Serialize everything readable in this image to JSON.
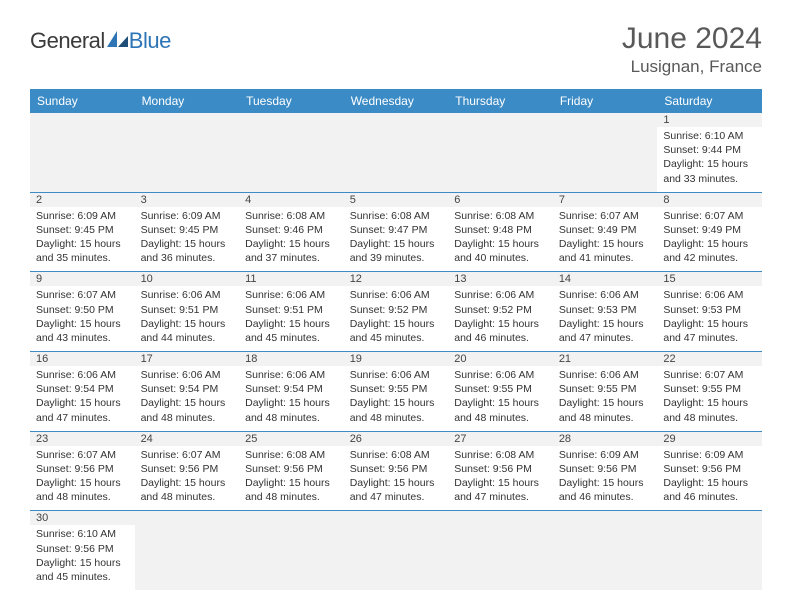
{
  "brand": {
    "word1": "General",
    "word2": "Blue"
  },
  "title": "June 2024",
  "location": "Lusignan, France",
  "colors": {
    "header_bg": "#3b8bc6",
    "header_text": "#ffffff",
    "daynum_bg": "#f2f2f2",
    "rule": "#3b8bc6",
    "text": "#333333",
    "title_color": "#595959"
  },
  "day_headers": [
    "Sunday",
    "Monday",
    "Tuesday",
    "Wednesday",
    "Thursday",
    "Friday",
    "Saturday"
  ],
  "weeks": [
    [
      null,
      null,
      null,
      null,
      null,
      null,
      {
        "n": "1",
        "sr": "Sunrise: 6:10 AM",
        "ss": "Sunset: 9:44 PM",
        "d1": "Daylight: 15 hours",
        "d2": "and 33 minutes."
      }
    ],
    [
      {
        "n": "2",
        "sr": "Sunrise: 6:09 AM",
        "ss": "Sunset: 9:45 PM",
        "d1": "Daylight: 15 hours",
        "d2": "and 35 minutes."
      },
      {
        "n": "3",
        "sr": "Sunrise: 6:09 AM",
        "ss": "Sunset: 9:45 PM",
        "d1": "Daylight: 15 hours",
        "d2": "and 36 minutes."
      },
      {
        "n": "4",
        "sr": "Sunrise: 6:08 AM",
        "ss": "Sunset: 9:46 PM",
        "d1": "Daylight: 15 hours",
        "d2": "and 37 minutes."
      },
      {
        "n": "5",
        "sr": "Sunrise: 6:08 AM",
        "ss": "Sunset: 9:47 PM",
        "d1": "Daylight: 15 hours",
        "d2": "and 39 minutes."
      },
      {
        "n": "6",
        "sr": "Sunrise: 6:08 AM",
        "ss": "Sunset: 9:48 PM",
        "d1": "Daylight: 15 hours",
        "d2": "and 40 minutes."
      },
      {
        "n": "7",
        "sr": "Sunrise: 6:07 AM",
        "ss": "Sunset: 9:49 PM",
        "d1": "Daylight: 15 hours",
        "d2": "and 41 minutes."
      },
      {
        "n": "8",
        "sr": "Sunrise: 6:07 AM",
        "ss": "Sunset: 9:49 PM",
        "d1": "Daylight: 15 hours",
        "d2": "and 42 minutes."
      }
    ],
    [
      {
        "n": "9",
        "sr": "Sunrise: 6:07 AM",
        "ss": "Sunset: 9:50 PM",
        "d1": "Daylight: 15 hours",
        "d2": "and 43 minutes."
      },
      {
        "n": "10",
        "sr": "Sunrise: 6:06 AM",
        "ss": "Sunset: 9:51 PM",
        "d1": "Daylight: 15 hours",
        "d2": "and 44 minutes."
      },
      {
        "n": "11",
        "sr": "Sunrise: 6:06 AM",
        "ss": "Sunset: 9:51 PM",
        "d1": "Daylight: 15 hours",
        "d2": "and 45 minutes."
      },
      {
        "n": "12",
        "sr": "Sunrise: 6:06 AM",
        "ss": "Sunset: 9:52 PM",
        "d1": "Daylight: 15 hours",
        "d2": "and 45 minutes."
      },
      {
        "n": "13",
        "sr": "Sunrise: 6:06 AM",
        "ss": "Sunset: 9:52 PM",
        "d1": "Daylight: 15 hours",
        "d2": "and 46 minutes."
      },
      {
        "n": "14",
        "sr": "Sunrise: 6:06 AM",
        "ss": "Sunset: 9:53 PM",
        "d1": "Daylight: 15 hours",
        "d2": "and 47 minutes."
      },
      {
        "n": "15",
        "sr": "Sunrise: 6:06 AM",
        "ss": "Sunset: 9:53 PM",
        "d1": "Daylight: 15 hours",
        "d2": "and 47 minutes."
      }
    ],
    [
      {
        "n": "16",
        "sr": "Sunrise: 6:06 AM",
        "ss": "Sunset: 9:54 PM",
        "d1": "Daylight: 15 hours",
        "d2": "and 47 minutes."
      },
      {
        "n": "17",
        "sr": "Sunrise: 6:06 AM",
        "ss": "Sunset: 9:54 PM",
        "d1": "Daylight: 15 hours",
        "d2": "and 48 minutes."
      },
      {
        "n": "18",
        "sr": "Sunrise: 6:06 AM",
        "ss": "Sunset: 9:54 PM",
        "d1": "Daylight: 15 hours",
        "d2": "and 48 minutes."
      },
      {
        "n": "19",
        "sr": "Sunrise: 6:06 AM",
        "ss": "Sunset: 9:55 PM",
        "d1": "Daylight: 15 hours",
        "d2": "and 48 minutes."
      },
      {
        "n": "20",
        "sr": "Sunrise: 6:06 AM",
        "ss": "Sunset: 9:55 PM",
        "d1": "Daylight: 15 hours",
        "d2": "and 48 minutes."
      },
      {
        "n": "21",
        "sr": "Sunrise: 6:06 AM",
        "ss": "Sunset: 9:55 PM",
        "d1": "Daylight: 15 hours",
        "d2": "and 48 minutes."
      },
      {
        "n": "22",
        "sr": "Sunrise: 6:07 AM",
        "ss": "Sunset: 9:55 PM",
        "d1": "Daylight: 15 hours",
        "d2": "and 48 minutes."
      }
    ],
    [
      {
        "n": "23",
        "sr": "Sunrise: 6:07 AM",
        "ss": "Sunset: 9:56 PM",
        "d1": "Daylight: 15 hours",
        "d2": "and 48 minutes."
      },
      {
        "n": "24",
        "sr": "Sunrise: 6:07 AM",
        "ss": "Sunset: 9:56 PM",
        "d1": "Daylight: 15 hours",
        "d2": "and 48 minutes."
      },
      {
        "n": "25",
        "sr": "Sunrise: 6:08 AM",
        "ss": "Sunset: 9:56 PM",
        "d1": "Daylight: 15 hours",
        "d2": "and 48 minutes."
      },
      {
        "n": "26",
        "sr": "Sunrise: 6:08 AM",
        "ss": "Sunset: 9:56 PM",
        "d1": "Daylight: 15 hours",
        "d2": "and 47 minutes."
      },
      {
        "n": "27",
        "sr": "Sunrise: 6:08 AM",
        "ss": "Sunset: 9:56 PM",
        "d1": "Daylight: 15 hours",
        "d2": "and 47 minutes."
      },
      {
        "n": "28",
        "sr": "Sunrise: 6:09 AM",
        "ss": "Sunset: 9:56 PM",
        "d1": "Daylight: 15 hours",
        "d2": "and 46 minutes."
      },
      {
        "n": "29",
        "sr": "Sunrise: 6:09 AM",
        "ss": "Sunset: 9:56 PM",
        "d1": "Daylight: 15 hours",
        "d2": "and 46 minutes."
      }
    ],
    [
      {
        "n": "30",
        "sr": "Sunrise: 6:10 AM",
        "ss": "Sunset: 9:56 PM",
        "d1": "Daylight: 15 hours",
        "d2": "and 45 minutes."
      },
      null,
      null,
      null,
      null,
      null,
      null
    ]
  ]
}
